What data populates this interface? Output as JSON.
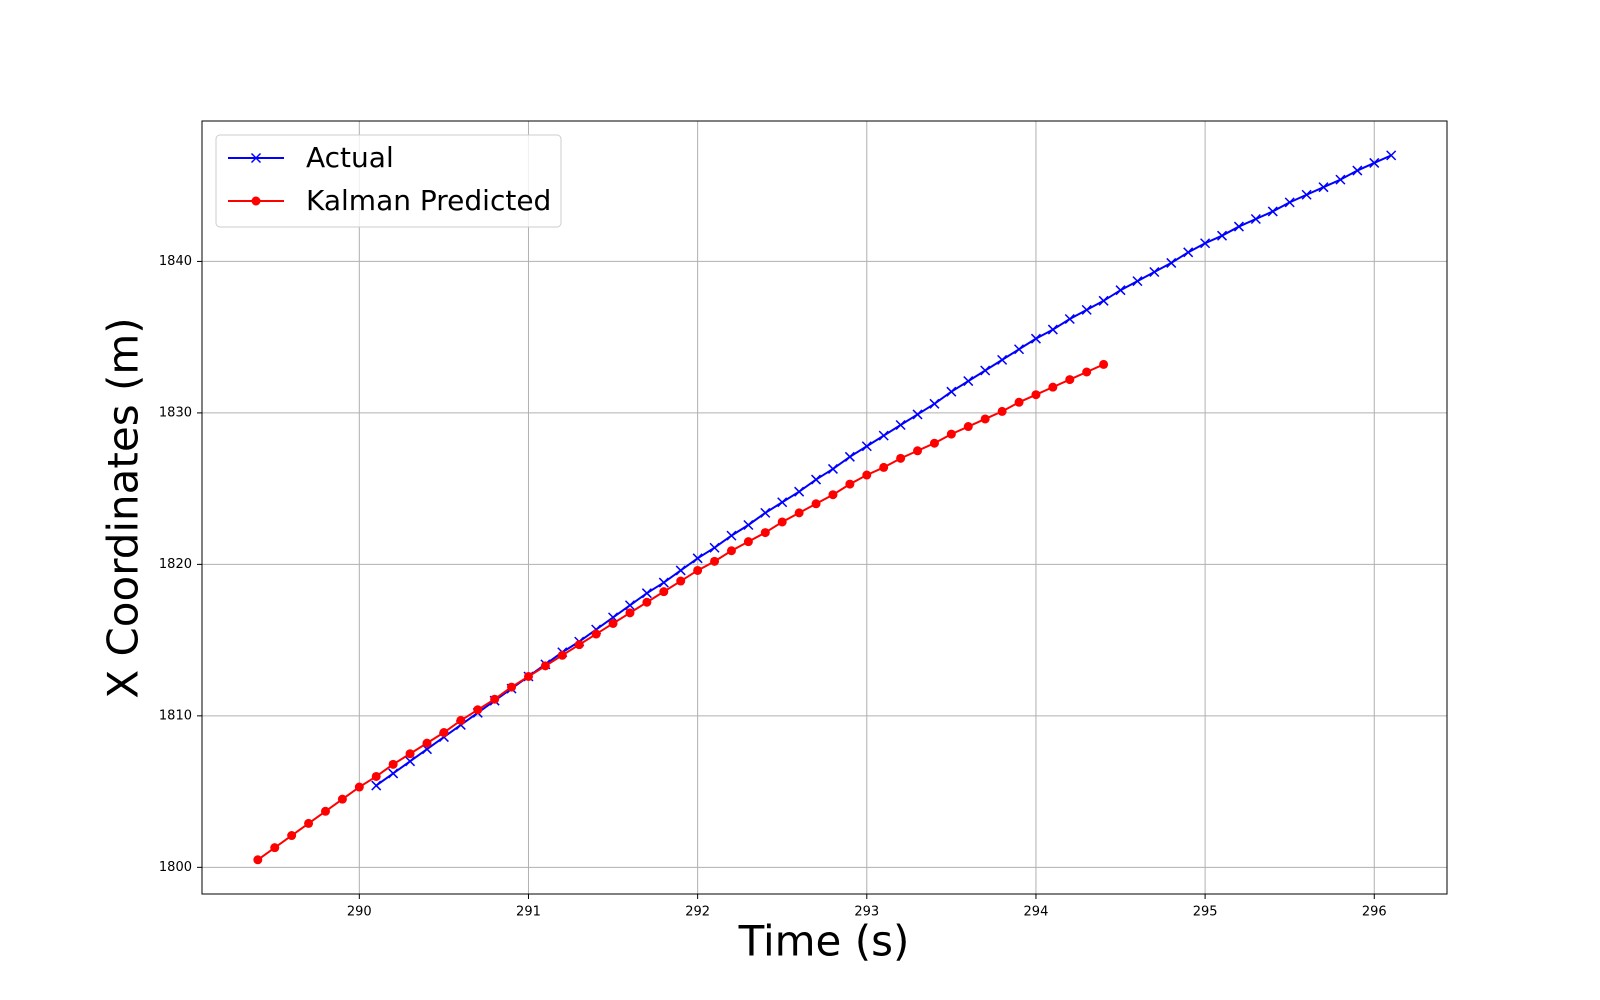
{
  "chart_data": {
    "type": "line",
    "xlabel": "Time (s)",
    "ylabel": "X Coordinates (m)",
    "xlim": [
      289.07,
      296.43
    ],
    "ylim": [
      1798.24,
      1849.27
    ],
    "xticks": [
      290,
      291,
      292,
      293,
      294,
      295,
      296
    ],
    "yticks": [
      1800,
      1810,
      1820,
      1830,
      1840
    ],
    "grid": true,
    "legend": "upper left",
    "series": [
      {
        "name": "Actual",
        "color": "#0000ff",
        "marker": "x",
        "x": [
          290.1,
          290.2,
          290.3,
          290.4,
          290.5,
          290.6,
          290.7,
          290.8,
          290.9,
          291.0,
          291.1,
          291.2,
          291.3,
          291.4,
          291.5,
          291.6,
          291.7,
          291.8,
          291.9,
          292.0,
          292.1,
          292.2,
          292.3,
          292.4,
          292.5,
          292.6,
          292.7,
          292.8,
          292.9,
          293.0,
          293.1,
          293.2,
          293.3,
          293.4,
          293.5,
          293.6,
          293.7,
          293.8,
          293.9,
          294.0,
          294.1,
          294.2,
          294.3,
          294.4,
          294.5,
          294.6,
          294.7,
          294.8,
          294.9,
          295.0,
          295.1,
          295.2,
          295.3,
          295.4,
          295.5,
          295.6,
          295.7,
          295.8,
          295.9,
          296.0,
          296.1
        ],
        "values": [
          1805.4,
          1806.2,
          1807.0,
          1807.8,
          1808.6,
          1809.4,
          1810.2,
          1811.0,
          1811.8,
          1812.6,
          1813.4,
          1814.2,
          1814.9,
          1815.7,
          1816.5,
          1817.3,
          1818.1,
          1818.8,
          1819.6,
          1820.4,
          1821.1,
          1821.9,
          1822.6,
          1823.4,
          1824.1,
          1824.8,
          1825.6,
          1826.3,
          1827.1,
          1827.8,
          1828.5,
          1829.2,
          1829.9,
          1830.6,
          1831.4,
          1832.1,
          1832.8,
          1833.5,
          1834.2,
          1834.9,
          1835.5,
          1836.2,
          1836.8,
          1837.4,
          1838.1,
          1838.7,
          1839.3,
          1839.9,
          1840.6,
          1841.2,
          1841.7,
          1842.3,
          1842.8,
          1843.3,
          1843.9,
          1844.4,
          1844.9,
          1845.4,
          1846.0,
          1846.5,
          1847.0
        ]
      },
      {
        "name": "Kalman Predicted",
        "color": "#ff0000",
        "marker": "o",
        "x": [
          289.4,
          289.5,
          289.6,
          289.7,
          289.8,
          289.9,
          290.0,
          290.1,
          290.2,
          290.3,
          290.4,
          290.5,
          290.6,
          290.7,
          290.8,
          290.9,
          291.0,
          291.1,
          291.2,
          291.3,
          291.4,
          291.5,
          291.6,
          291.7,
          291.8,
          291.9,
          292.0,
          292.1,
          292.2,
          292.3,
          292.4,
          292.5,
          292.6,
          292.7,
          292.8,
          292.9,
          293.0,
          293.1,
          293.2,
          293.3,
          293.4,
          293.5,
          293.6,
          293.7,
          293.8,
          293.9,
          294.0,
          294.1,
          294.2,
          294.3,
          294.4
        ],
        "values": [
          1800.5,
          1801.3,
          1802.1,
          1802.9,
          1803.7,
          1804.5,
          1805.3,
          1806.0,
          1806.8,
          1807.5,
          1808.2,
          1808.9,
          1809.7,
          1810.4,
          1811.1,
          1811.9,
          1812.6,
          1813.3,
          1814.0,
          1814.7,
          1815.4,
          1816.1,
          1816.8,
          1817.5,
          1818.2,
          1818.9,
          1819.6,
          1820.2,
          1820.9,
          1821.5,
          1822.1,
          1822.8,
          1823.4,
          1824.0,
          1824.6,
          1825.3,
          1825.9,
          1826.4,
          1827.0,
          1827.5,
          1828.0,
          1828.6,
          1829.1,
          1829.6,
          1830.1,
          1830.7,
          1831.2,
          1831.7,
          1832.2,
          1832.7,
          1833.2
        ]
      }
    ]
  }
}
